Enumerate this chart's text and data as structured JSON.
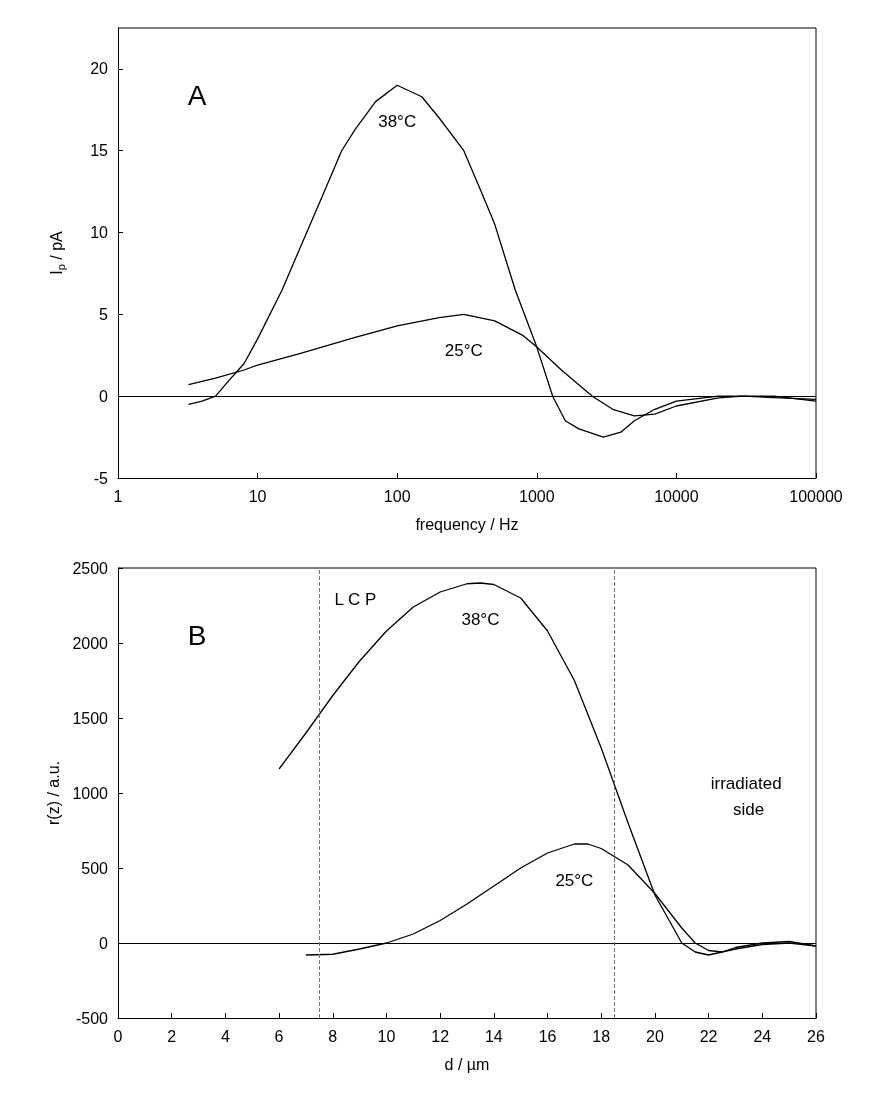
{
  "chart_data": [
    {
      "type": "line",
      "xlabel": "frequency / Hz",
      "ylabel": "I$_{p}$ / pA",
      "log": "x",
      "xlim": [
        1,
        100000
      ],
      "xticks": [
        1,
        10,
        100,
        1000,
        10000,
        100000
      ],
      "ylim": [
        -5,
        22.5
      ],
      "yticks": [
        -5,
        0,
        5,
        10,
        15,
        20
      ],
      "grid": false,
      "marker": "none",
      "line_style": "solid",
      "annotations": [
        "A"
      ],
      "ref_lines": [
        {
          "axis": "y",
          "value": 0,
          "color": "#000000",
          "line_style": "solid"
        }
      ],
      "series": [
        {
          "name": "38°C",
          "color": "#000000",
          "x": [
            3.2,
            4,
            5,
            6,
            8,
            10,
            15,
            20,
            30,
            40,
            50,
            70,
            100,
            150,
            200,
            300,
            400,
            500,
            700,
            1000,
            1300,
            1600,
            2000,
            3000,
            4000,
            5000,
            7000,
            10000,
            20000,
            50000,
            100000
          ],
          "values": [
            -0.5,
            -0.3,
            0,
            0.8,
            2,
            3.5,
            6.5,
            9,
            12.5,
            15,
            16.3,
            18,
            19,
            18.3,
            17,
            15,
            12.5,
            10.5,
            6.5,
            3,
            0,
            -1.5,
            -2,
            -2.5,
            -2.2,
            -1.5,
            -0.8,
            -0.3,
            0,
            0,
            -0.3
          ]
        },
        {
          "name": "25°C",
          "color": "#000000",
          "x": [
            3.2,
            5,
            8,
            10,
            20,
            50,
            100,
            200,
            300,
            500,
            800,
            1000,
            1500,
            2500,
            3500,
            5000,
            7000,
            10000,
            20000,
            30000,
            100000
          ],
          "values": [
            0.7,
            1.1,
            1.6,
            1.9,
            2.6,
            3.6,
            4.3,
            4.8,
            5,
            4.6,
            3.7,
            3,
            1.6,
            0,
            -0.8,
            -1.2,
            -1.1,
            -0.6,
            -0.1,
            0,
            -0.2
          ]
        }
      ]
    },
    {
      "type": "line",
      "xlabel": "d / µm",
      "ylabel": "r(z) / a.u.",
      "xlim": [
        0,
        26
      ],
      "xticks": [
        0,
        2,
        4,
        6,
        8,
        10,
        12,
        14,
        16,
        18,
        20,
        22,
        24,
        26
      ],
      "ylim": [
        -500,
        2500
      ],
      "yticks": [
        -500,
        0,
        500,
        1000,
        1500,
        2000,
        2500
      ],
      "grid": false,
      "marker": "none",
      "line_style": "solid",
      "annotations": [
        "B",
        "L C P",
        "irradiated side"
      ],
      "ref_lines": [
        {
          "axis": "y",
          "value": 0,
          "color": "#000000",
          "line_style": "solid"
        },
        {
          "axis": "x",
          "value": 7.5,
          "color": "#777777",
          "line_style": "dashed"
        },
        {
          "axis": "x",
          "value": 18.5,
          "color": "#777777",
          "line_style": "dashed"
        }
      ],
      "series": [
        {
          "name": "38°C",
          "color": "#000000",
          "x": [
            6,
            7,
            8,
            9,
            10,
            11,
            12,
            13,
            13.5,
            14,
            15,
            16,
            17,
            18,
            19,
            20,
            21,
            21.5,
            22,
            22.5,
            23,
            24,
            25,
            26
          ],
          "values": [
            1160,
            1400,
            1650,
            1880,
            2080,
            2240,
            2340,
            2395,
            2400,
            2390,
            2300,
            2080,
            1750,
            1300,
            800,
            320,
            0,
            -60,
            -80,
            -60,
            -30,
            0,
            10,
            -20
          ]
        },
        {
          "name": "25°C",
          "color": "#000000",
          "x": [
            7,
            8,
            9,
            10,
            11,
            12,
            13,
            14,
            15,
            16,
            17,
            17.5,
            18,
            19,
            20,
            21,
            21.5,
            22,
            22.5,
            23,
            24,
            25,
            26
          ],
          "values": [
            -80,
            -75,
            -40,
            0,
            60,
            150,
            260,
            380,
            500,
            600,
            660,
            660,
            630,
            520,
            330,
            100,
            0,
            -50,
            -60,
            -40,
            -10,
            0,
            -20
          ]
        }
      ]
    }
  ]
}
